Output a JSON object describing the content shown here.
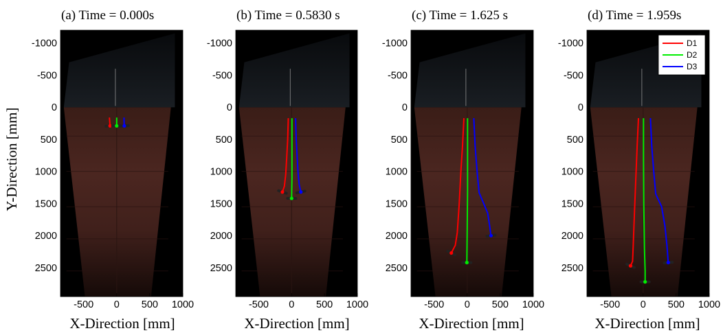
{
  "figure": {
    "ylabel": "Y-Direction [mm]",
    "xlabel": "X-Direction [mm]"
  },
  "chart_data": [
    {
      "type": "line",
      "title": "(a) Time = 0.000s",
      "xlabel": "X-Direction [mm]",
      "ylabel": "Y-Direction [mm]",
      "xlim": [
        -850,
        1000
      ],
      "ylim": [
        -1200,
        2950
      ],
      "y_reversed": true,
      "xticks": [
        -500,
        0,
        500,
        1000
      ],
      "yticks": [
        -1000,
        -500,
        0,
        500,
        1000,
        1500,
        2000,
        2500
      ],
      "series": [
        {
          "name": "D1",
          "color": "#ff0000",
          "points": [
            [
              -110,
              160
            ],
            [
              -105,
              230
            ],
            [
              -100,
              290
            ]
          ]
        },
        {
          "name": "D2",
          "color": "#00ee00",
          "points": [
            [
              0,
              160
            ],
            [
              0,
              230
            ],
            [
              0,
              290
            ]
          ]
        },
        {
          "name": "D3",
          "color": "#0000ff",
          "points": [
            [
              110,
              160
            ],
            [
              112,
              230
            ],
            [
              115,
              290
            ]
          ]
        }
      ]
    },
    {
      "type": "line",
      "title": "(b) Time = 0.5830 s",
      "xlabel": "X-Direction [mm]",
      "xlim": [
        -850,
        1000
      ],
      "ylim": [
        -1200,
        2950
      ],
      "y_reversed": true,
      "xticks": [
        -500,
        0,
        500,
        1000
      ],
      "yticks": [
        -1000,
        -500,
        0,
        500,
        1000,
        1500,
        2000,
        2500
      ],
      "series": [
        {
          "name": "D1",
          "color": "#ff0000",
          "points": [
            [
              -50,
              170
            ],
            [
              -60,
              500
            ],
            [
              -75,
              800
            ],
            [
              -90,
              1050
            ],
            [
              -110,
              1230
            ],
            [
              -140,
              1320
            ]
          ]
        },
        {
          "name": "D2",
          "color": "#00ee00",
          "points": [
            [
              5,
              170
            ],
            [
              5,
              500
            ],
            [
              5,
              800
            ],
            [
              5,
              1100
            ],
            [
              0,
              1420
            ]
          ]
        },
        {
          "name": "D3",
          "color": "#0000ff",
          "points": [
            [
              60,
              170
            ],
            [
              70,
              500
            ],
            [
              85,
              800
            ],
            [
              100,
              1050
            ],
            [
              115,
              1200
            ],
            [
              140,
              1320
            ]
          ]
        }
      ]
    },
    {
      "type": "line",
      "title": "(c) Time = 1.625 s",
      "xlabel": "X-Direction [mm]",
      "xlim": [
        -850,
        1000
      ],
      "ylim": [
        -1200,
        2950
      ],
      "y_reversed": true,
      "xticks": [
        -500,
        0,
        500,
        1000
      ],
      "yticks": [
        -1000,
        -500,
        0,
        500,
        1000,
        1500,
        2000,
        2500
      ],
      "series": [
        {
          "name": "D1",
          "color": "#ff0000",
          "points": [
            [
              -50,
              170
            ],
            [
              -70,
              600
            ],
            [
              -95,
              1000
            ],
            [
              -120,
              1500
            ],
            [
              -150,
              1950
            ],
            [
              -180,
              2150
            ],
            [
              -240,
              2270
            ]
          ]
        },
        {
          "name": "D2",
          "color": "#00ee00",
          "points": [
            [
              5,
              170
            ],
            [
              5,
              700
            ],
            [
              5,
              1300
            ],
            [
              0,
              1900
            ],
            [
              -5,
              2420
            ]
          ]
        },
        {
          "name": "D3",
          "color": "#0000ff",
          "points": [
            [
              100,
              170
            ],
            [
              120,
              600
            ],
            [
              150,
              1000
            ],
            [
              180,
              1330
            ],
            [
              250,
              1500
            ],
            [
              310,
              1650
            ],
            [
              340,
              1850
            ],
            [
              360,
              2000
            ]
          ]
        }
      ]
    },
    {
      "type": "line",
      "title": "(d) Time = 1.959s",
      "xlabel": "X-Direction [mm]",
      "xlim": [
        -850,
        1000
      ],
      "ylim": [
        -1200,
        2950
      ],
      "y_reversed": true,
      "xticks": [
        -500,
        0,
        500,
        1000
      ],
      "yticks": [
        -1000,
        -500,
        0,
        500,
        1000,
        1500,
        2000,
        2500
      ],
      "legend_position": "top-right",
      "series": [
        {
          "name": "D1",
          "color": "#ff0000",
          "points": [
            [
              -70,
              170
            ],
            [
              -90,
              600
            ],
            [
              -110,
              1100
            ],
            [
              -130,
              1600
            ],
            [
              -150,
              2150
            ],
            [
              -160,
              2400
            ],
            [
              -190,
              2470
            ]
          ]
        },
        {
          "name": "D2",
          "color": "#00ee00",
          "points": [
            [
              5,
              170
            ],
            [
              5,
              800
            ],
            [
              10,
              1500
            ],
            [
              20,
              2200
            ],
            [
              30,
              2550
            ],
            [
              30,
              2720
            ]
          ]
        },
        {
          "name": "D3",
          "color": "#0000ff",
          "points": [
            [
              110,
              170
            ],
            [
              130,
              600
            ],
            [
              160,
              1000
            ],
            [
              190,
              1350
            ],
            [
              280,
              1550
            ],
            [
              330,
              1850
            ],
            [
              360,
              2150
            ],
            [
              380,
              2420
            ]
          ]
        }
      ]
    }
  ]
}
